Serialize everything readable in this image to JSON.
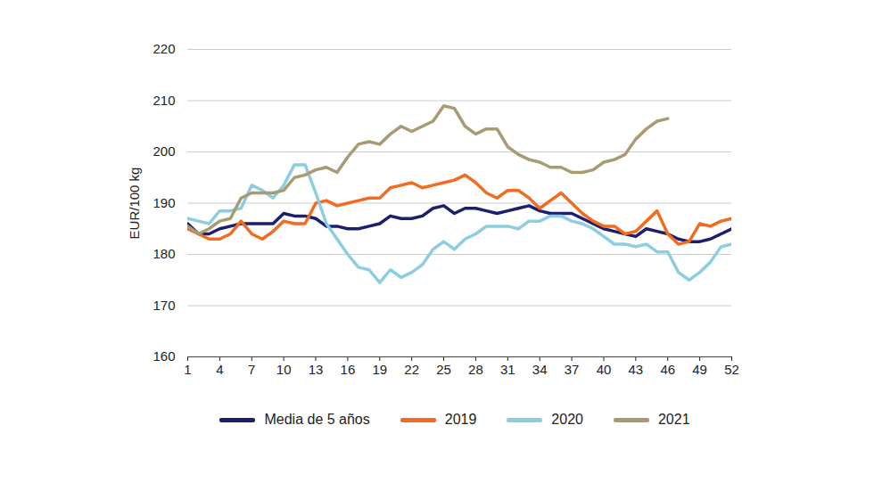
{
  "chart_data": {
    "type": "line",
    "y_label": "EUR/100 kg",
    "x": [
      1,
      2,
      3,
      4,
      5,
      6,
      7,
      8,
      9,
      10,
      11,
      12,
      13,
      14,
      15,
      16,
      17,
      18,
      19,
      20,
      21,
      22,
      23,
      24,
      25,
      26,
      27,
      28,
      29,
      30,
      31,
      32,
      33,
      34,
      35,
      36,
      37,
      38,
      39,
      40,
      41,
      42,
      43,
      44,
      45,
      46,
      47,
      48,
      49,
      50,
      51,
      52
    ],
    "xlim": [
      1,
      52
    ],
    "xticks": [
      1,
      4,
      7,
      10,
      13,
      16,
      19,
      22,
      25,
      28,
      31,
      34,
      37,
      40,
      43,
      46,
      49,
      52
    ],
    "ylim": [
      160,
      220
    ],
    "yticks": [
      160,
      170,
      180,
      190,
      200,
      210,
      220
    ],
    "grid": true,
    "legend": "bottom",
    "series": [
      {
        "name": "Media de 5 años",
        "color": "#1b1f6e",
        "values": [
          186,
          184,
          184,
          185,
          185.5,
          186,
          186,
          186,
          186,
          188,
          187.5,
          187.5,
          187,
          185.5,
          185.5,
          185,
          185,
          185.5,
          186,
          187.5,
          187,
          187,
          187.5,
          189,
          189.5,
          188,
          189,
          189,
          188.5,
          188,
          188.5,
          189,
          189.5,
          188.5,
          188,
          188,
          188,
          187,
          186,
          185,
          184.5,
          184,
          183.5,
          185,
          184.5,
          184,
          183,
          182.5,
          182.5,
          183,
          184,
          185
        ]
      },
      {
        "name": "2019",
        "color": "#f26b21",
        "values": [
          185,
          184,
          183,
          183,
          184,
          186.5,
          184,
          183,
          184.5,
          186.5,
          186,
          186,
          190,
          190.5,
          189.5,
          190,
          190.5,
          191,
          191,
          193,
          193.5,
          194,
          193,
          193.5,
          194,
          194.5,
          195.5,
          194,
          192,
          191,
          192.5,
          192.5,
          191,
          189,
          190.5,
          192,
          190,
          188,
          186.5,
          185.5,
          185.5,
          184,
          184.5,
          186.5,
          188.5,
          184,
          182,
          182.5,
          186,
          185.5,
          186.5,
          187
        ]
      },
      {
        "name": "2020",
        "color": "#8ccde2",
        "values": [
          187,
          186.5,
          186,
          188.5,
          188.5,
          189,
          193.5,
          192.5,
          191,
          193.5,
          197.5,
          197.5,
          192,
          186,
          183,
          180,
          177.5,
          177,
          174.5,
          177,
          175.5,
          176.5,
          178,
          181,
          182.5,
          181,
          183,
          184,
          185.5,
          185.5,
          185.5,
          185,
          186.5,
          186.5,
          187.5,
          187.5,
          186.5,
          186,
          185,
          183.5,
          182,
          182,
          181.5,
          182,
          180.5,
          180.5,
          176.5,
          175,
          176.5,
          178.5,
          181.5,
          182
        ]
      },
      {
        "name": "2021",
        "color": "#a89a73",
        "values": [
          185.5,
          184,
          185,
          186.5,
          187,
          191,
          192,
          192,
          192,
          192.5,
          195,
          195.5,
          196.5,
          197,
          196,
          199,
          201.5,
          202,
          201.5,
          203.5,
          205,
          204,
          205,
          206,
          209,
          208.5,
          205,
          203.5,
          204.5,
          204.5,
          201,
          199.5,
          198.5,
          198,
          197,
          197,
          196,
          196,
          196.5,
          198,
          198.5,
          199.5,
          202.5,
          204.5,
          206,
          206.5,
          null,
          null,
          null,
          null,
          null,
          null
        ]
      }
    ]
  }
}
